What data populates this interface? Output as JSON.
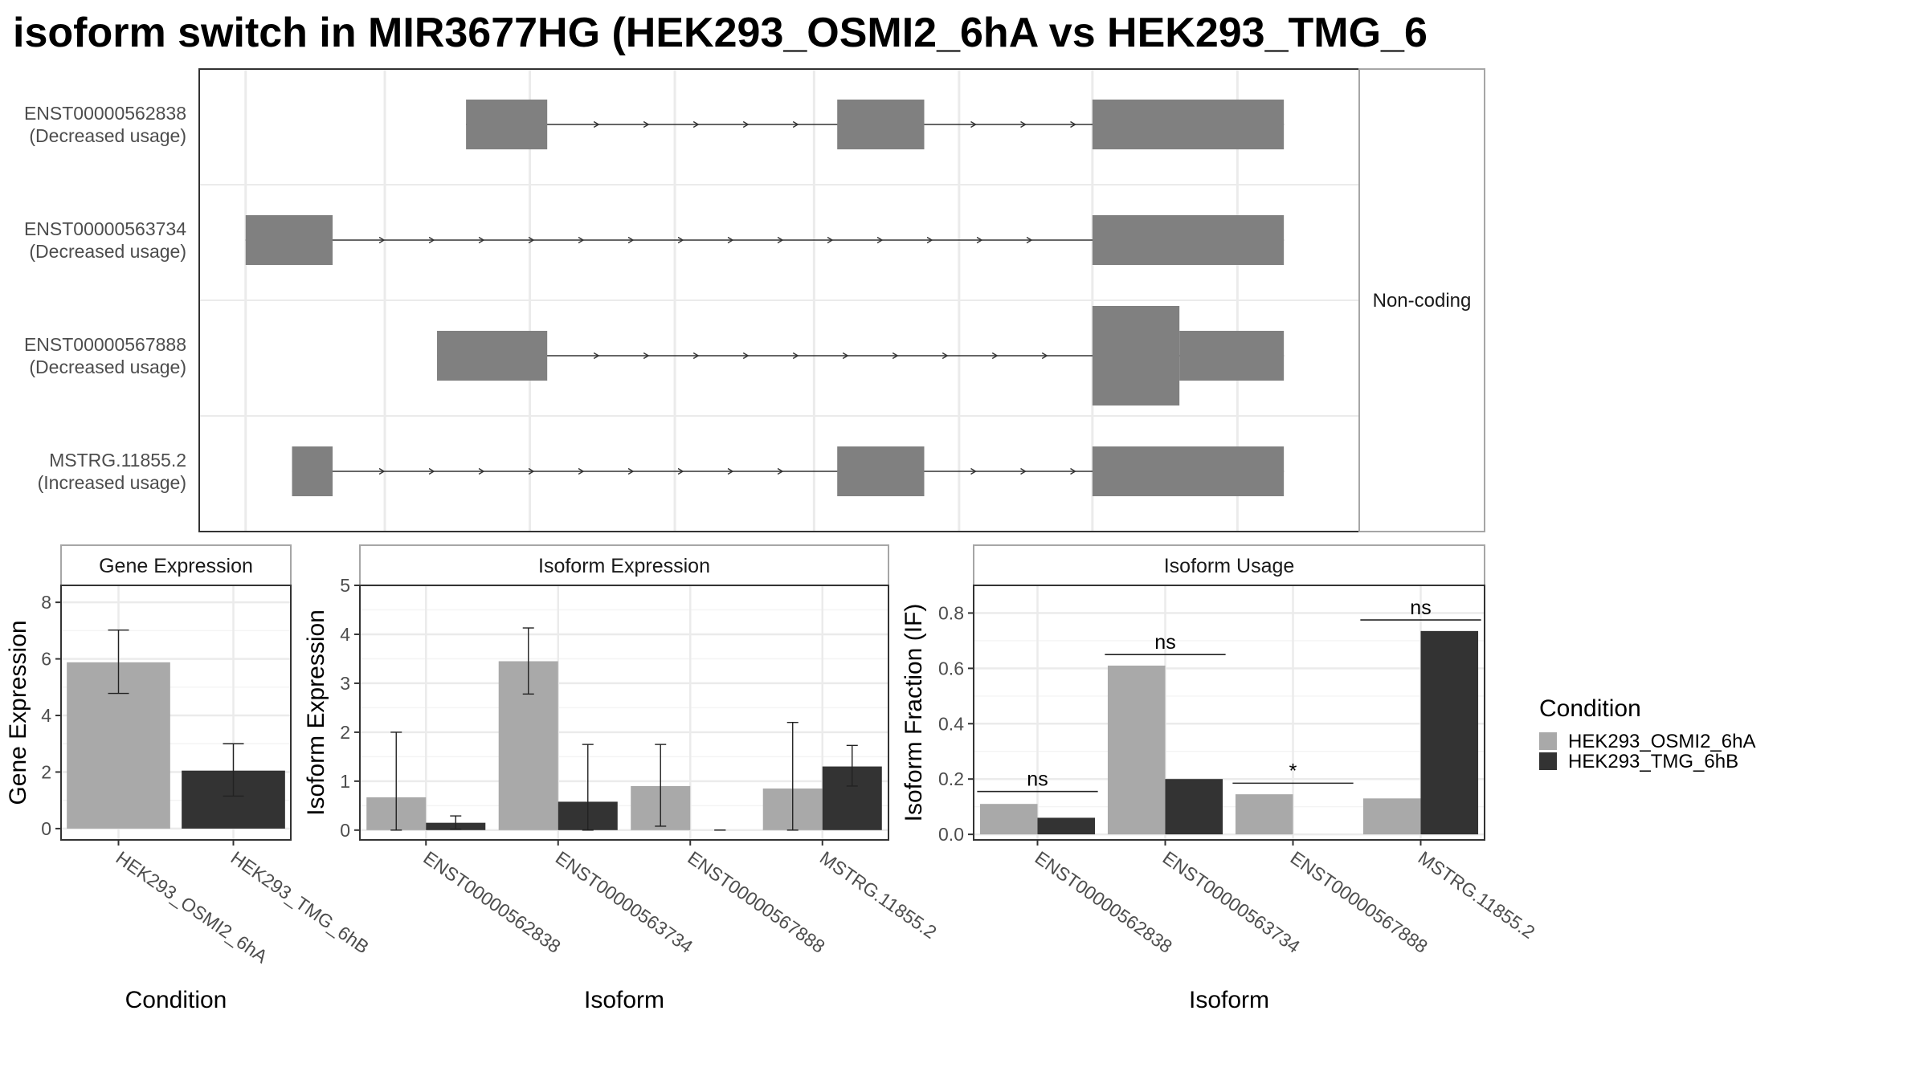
{
  "title": "isoform switch in MIR3677HG (HEK293_OSMI2_6hA vs HEK293_TMG_6",
  "colors": {
    "condition_a": "#a9a9a9",
    "condition_b": "#333333",
    "exon": "#808080",
    "grid": "#ebebeb",
    "panel_border": "#333333",
    "strip_border": "#a6a6a6",
    "text": "#000000",
    "axis_text": "#4d4d4d"
  },
  "chart_data": [
    {
      "type": "gene-structure",
      "facet_label": "Non-coding",
      "transcripts": [
        {
          "id": "ENST00000562838",
          "label_line1": "ENST00000562838",
          "label_line2": "(Decreased usage)",
          "exons": [
            [
              0.23,
              0.3,
              "full"
            ],
            [
              0.55,
              0.625,
              "full"
            ],
            [
              0.77,
              0.935,
              "full"
            ]
          ]
        },
        {
          "id": "ENST00000563734",
          "label_line1": "ENST00000563734",
          "label_line2": "(Decreased usage)",
          "exons": [
            [
              0.04,
              0.115,
              "full"
            ],
            [
              0.77,
              0.935,
              "full"
            ]
          ]
        },
        {
          "id": "ENST00000567888",
          "label_line1": "ENST00000567888",
          "label_line2": "(Decreased usage)",
          "exons": [
            [
              0.205,
              0.3,
              "full"
            ],
            [
              0.77,
              0.845,
              "tall"
            ],
            [
              0.845,
              0.935,
              "full"
            ]
          ]
        },
        {
          "id": "MSTRG.11855.2",
          "label_line1": "MSTRG.11855.2",
          "label_line2": "(Increased usage)",
          "exons": [
            [
              0.08,
              0.115,
              "full"
            ],
            [
              0.55,
              0.625,
              "full"
            ],
            [
              0.77,
              0.935,
              "full"
            ]
          ]
        }
      ]
    },
    {
      "type": "bar",
      "panel_title": "Gene Expression",
      "xlabel": "Condition",
      "ylabel": "Gene Expression",
      "ylim": [
        -0.4,
        8.6
      ],
      "yticks": [
        0,
        2,
        4,
        6,
        8
      ],
      "categories": [
        "HEK293_OSMI2_6hA",
        "HEK293_TMG_6hB"
      ],
      "values": [
        5.88,
        2.05
      ],
      "error_low": [
        4.78,
        1.15
      ],
      "error_high": [
        7.02,
        3.0
      ],
      "series_index": [
        0,
        1
      ]
    },
    {
      "type": "bar",
      "panel_title": "Isoform Expression",
      "xlabel": "Isoform",
      "ylabel": "Isoform Expression",
      "ylim": [
        -0.2,
        5.0
      ],
      "yticks": [
        0,
        1,
        2,
        3,
        4,
        5
      ],
      "categories": [
        "ENST00000562838",
        "ENST00000563734",
        "ENST00000567888",
        "MSTRG.11855.2"
      ],
      "series": [
        {
          "name": "HEK293_OSMI2_6hA",
          "values": [
            0.67,
            3.45,
            0.9,
            0.85
          ],
          "error_low": [
            0.0,
            2.78,
            0.08,
            0.0
          ],
          "error_high": [
            2.0,
            4.13,
            1.75,
            2.2
          ]
        },
        {
          "name": "HEK293_TMG_6hB",
          "values": [
            0.15,
            0.58,
            0.0,
            1.3
          ],
          "error_low": [
            0.02,
            0.0,
            0.0,
            0.9
          ],
          "error_high": [
            0.29,
            1.75,
            0.0,
            1.73
          ]
        }
      ]
    },
    {
      "type": "bar",
      "panel_title": "Isoform Usage",
      "xlabel": "Isoform",
      "ylabel": "Isoform Fraction (IF)",
      "ylim": [
        -0.02,
        0.9
      ],
      "yticks": [
        0.0,
        0.2,
        0.4,
        0.6,
        0.8
      ],
      "ytick_labels": [
        "0.0",
        "0.2",
        "0.4",
        "0.6",
        "0.8"
      ],
      "categories": [
        "ENST00000562838",
        "ENST00000563734",
        "ENST00000567888",
        "MSTRG.11855.2"
      ],
      "series": [
        {
          "name": "HEK293_OSMI2_6hA",
          "values": [
            0.11,
            0.61,
            0.145,
            0.13
          ]
        },
        {
          "name": "HEK293_TMG_6hB",
          "values": [
            0.06,
            0.2,
            0.0,
            0.735
          ]
        }
      ],
      "annotations": [
        {
          "category_index": 0,
          "text": "ns",
          "y": 0.155
        },
        {
          "category_index": 1,
          "text": "ns",
          "y": 0.65
        },
        {
          "category_index": 2,
          "text": "*",
          "y": 0.185
        },
        {
          "category_index": 3,
          "text": "ns",
          "y": 0.775
        }
      ]
    }
  ],
  "legend": {
    "title": "Condition",
    "placement": "right",
    "entries": [
      "HEK293_OSMI2_6hA",
      "HEK293_TMG_6hB"
    ]
  }
}
